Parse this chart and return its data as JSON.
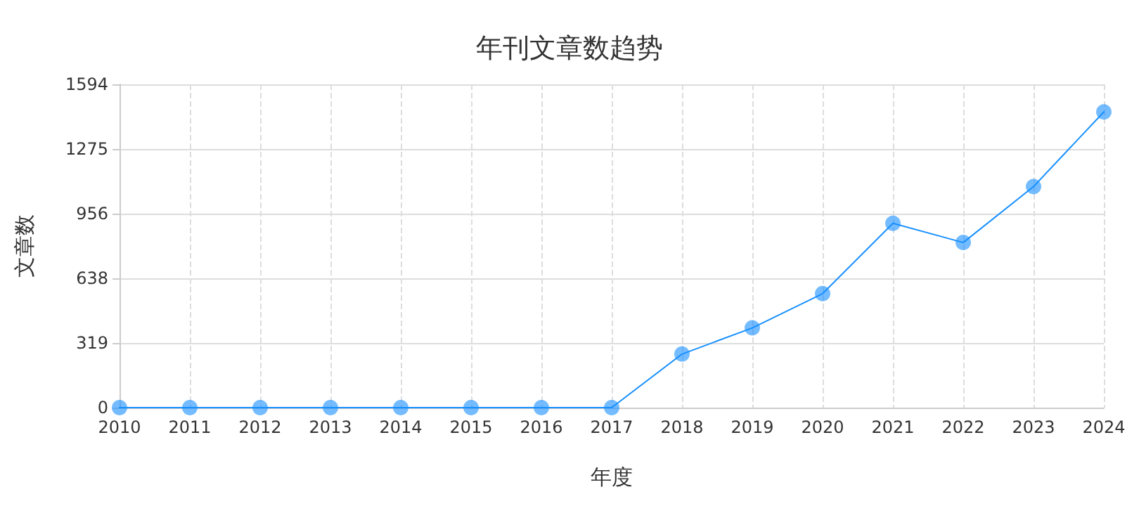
{
  "chart_data": {
    "type": "line",
    "title": "年刊文章数趋势",
    "xlabel": "年度",
    "ylabel": "文章数",
    "categories": [
      "2010",
      "2011",
      "2012",
      "2013",
      "2014",
      "2015",
      "2016",
      "2017",
      "2018",
      "2019",
      "2020",
      "2021",
      "2022",
      "2023",
      "2024"
    ],
    "series": [
      {
        "color": "#1890ff",
        "values": [
          0,
          0,
          0,
          0,
          0,
          0,
          0,
          0,
          264,
          393,
          562,
          909,
          814,
          1090,
          1458
        ]
      }
    ],
    "ylim": [
      0,
      1594
    ],
    "yticks": [
      0,
      319,
      638,
      956,
      1275,
      1594
    ],
    "grid": true,
    "marker": "circle",
    "line_style": "solid"
  }
}
